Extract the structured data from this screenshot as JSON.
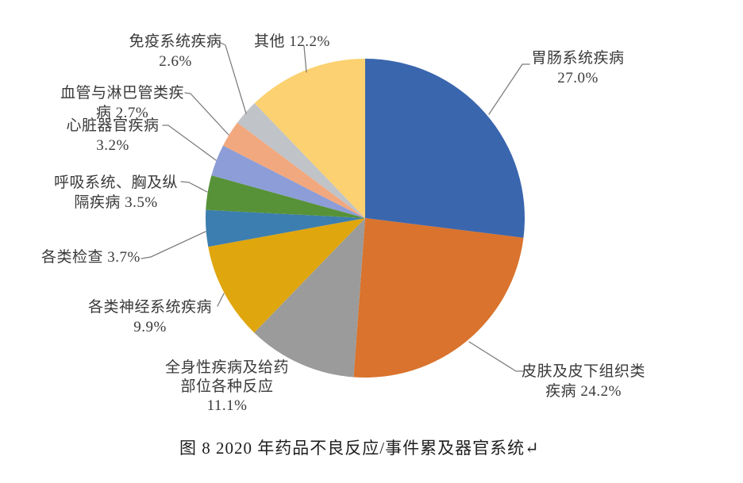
{
  "caption": {
    "text": "图 8  2020 年药品不良反应/事件累及器官系统↵"
  },
  "chart_data": {
    "type": "pie",
    "title": "图 8  2020 年药品不良反应/事件累及器官系统",
    "unit": "%",
    "start_angle_deg": -90,
    "direction": "clockwise",
    "legend": "none (outside callout labels)",
    "slices": [
      {
        "key": "gastrointestinal",
        "name": "胃肠系统疾病",
        "value": 27.0,
        "color": "#3A66AE",
        "label_lines": [
          "胃肠系统疾病",
          "27.0%"
        ]
      },
      {
        "key": "skin",
        "name": "皮肤及皮下组织类疾病",
        "value": 24.2,
        "color": "#D9732D",
        "label_lines": [
          "皮肤及皮下组织类",
          "疾病 24.2%"
        ]
      },
      {
        "key": "general",
        "name": "全身性疾病及给药部位各种反应",
        "value": 11.1,
        "color": "#9B9B9B",
        "label_lines": [
          "全身性疾病及给药",
          "部位各种反应",
          "11.1%"
        ]
      },
      {
        "key": "nervous",
        "name": "各类神经系统疾病",
        "value": 9.9,
        "color": "#E0A60E",
        "label_lines": [
          "各类神经系统疾病",
          "9.9%"
        ]
      },
      {
        "key": "investigations",
        "name": "各类检查",
        "value": 3.7,
        "color": "#3C7EAF",
        "label_lines": [
          "各类检查 3.7%"
        ]
      },
      {
        "key": "respiratory",
        "name": "呼吸系统、胸及纵隔疾病",
        "value": 3.5,
        "color": "#579238",
        "label_lines": [
          "呼吸系统、胸及纵",
          "隔疾病 3.5%"
        ]
      },
      {
        "key": "cardiac",
        "name": "心脏器官疾病",
        "value": 3.2,
        "color": "#8C9DD7",
        "label_lines": [
          "心脏器官疾病",
          "3.2%"
        ]
      },
      {
        "key": "vascular",
        "name": "血管与淋巴管类疾病",
        "value": 2.7,
        "color": "#F2A87E",
        "label_lines": [
          "血管与淋巴管类疾",
          "病 2.7%"
        ]
      },
      {
        "key": "immune",
        "name": "免疫系统疾病",
        "value": 2.6,
        "color": "#C0C3C8",
        "label_lines": [
          "免疫系统疾病",
          "2.6%"
        ]
      },
      {
        "key": "other",
        "name": "其他",
        "value": 12.2,
        "color": "#FBD171",
        "label_lines": [
          "其他 12.2%"
        ]
      }
    ],
    "leader_line_color": "#7a7a7a",
    "text_color": "#3a3a3a"
  }
}
